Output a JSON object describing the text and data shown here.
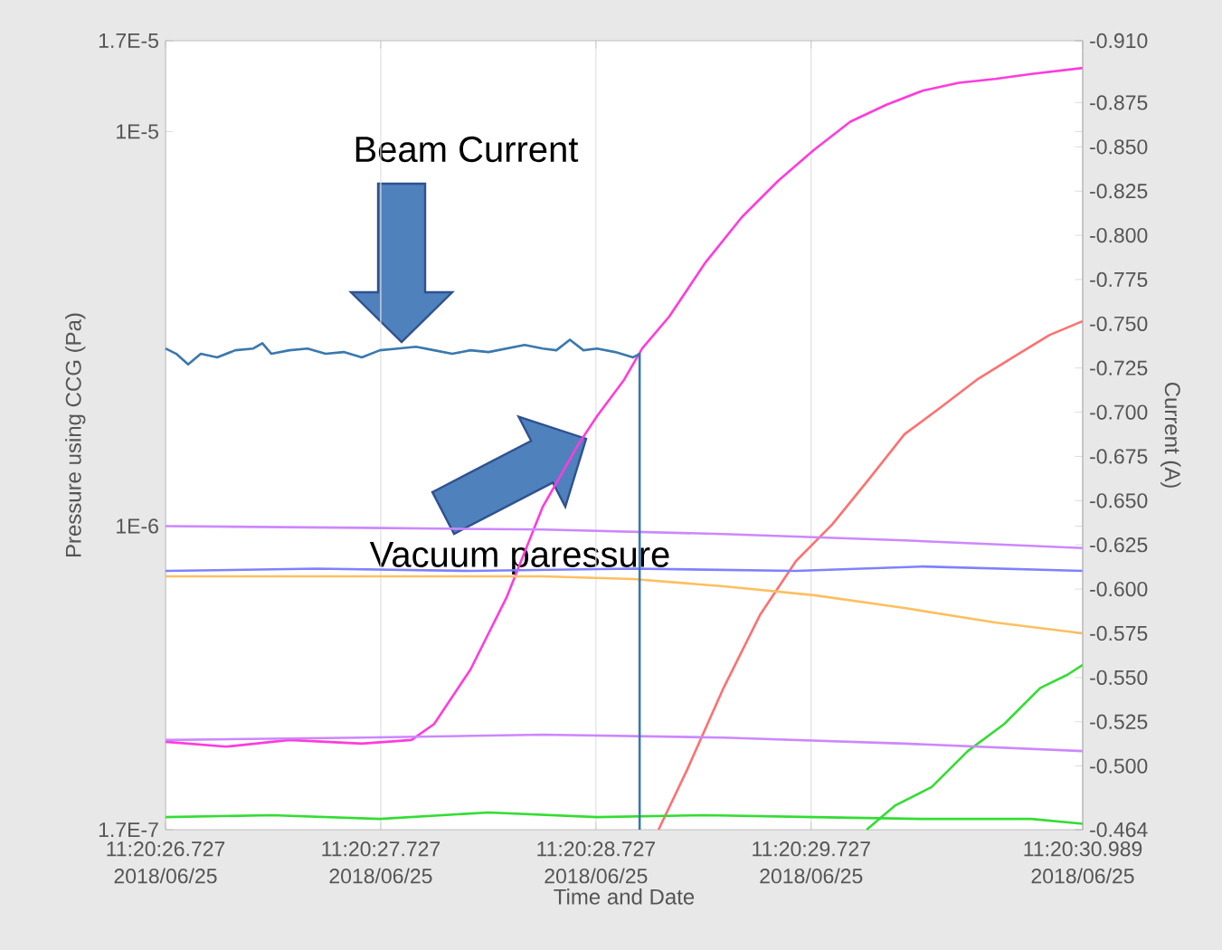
{
  "chart_data": {
    "type": "line",
    "xlabel": "Time and Date",
    "ylabel": "Pressure using CCG (Pa)",
    "y2label": "Current (A)",
    "annotations": [
      "Beam Current",
      "Vacuum paressure"
    ],
    "log": "y",
    "grid": "x",
    "xlim": [
      "2018-06-25T11:20:26.727",
      "2018-06-25T11:20:30.989"
    ],
    "xticks": [
      {
        "value": "2018-06-25T11:20:26.727",
        "label": "11:20:26.727 2018/06/25"
      },
      {
        "value": "2018-06-25T11:20:27.727",
        "label": "11:20:27.727 2018/06/25"
      },
      {
        "value": "2018-06-25T11:20:28.727",
        "label": "11:20:28.727 2018/06/25"
      },
      {
        "value": "2018-06-25T11:20:29.727",
        "label": "11:20:29.727 2018/06/25"
      },
      {
        "value": "2018-06-25T11:20:30.989",
        "label": "11:20:30.989 2018/06/25"
      }
    ],
    "ylim": [
      1.7e-07,
      1.7e-05
    ],
    "yticks": [
      {
        "value": 1.7e-07,
        "label": "1.7E-7"
      },
      {
        "value": 1e-06,
        "label": "1E-6"
      },
      {
        "value": 1e-05,
        "label": "1E-5"
      },
      {
        "value": 1.7e-05,
        "label": "1.7E-5"
      }
    ],
    "y2lim": [
      -0.464,
      -0.91
    ],
    "y2ticks": [
      {
        "value": -0.464,
        "label": "-0.464"
      },
      {
        "value": -0.5,
        "label": "-0.500"
      },
      {
        "value": -0.525,
        "label": "-0.525"
      },
      {
        "value": -0.55,
        "label": "-0.550"
      },
      {
        "value": -0.575,
        "label": "-0.575"
      },
      {
        "value": -0.6,
        "label": "-0.600"
      },
      {
        "value": -0.625,
        "label": "-0.625"
      },
      {
        "value": -0.65,
        "label": "-0.650"
      },
      {
        "value": -0.675,
        "label": "-0.675"
      },
      {
        "value": -0.7,
        "label": "-0.700"
      },
      {
        "value": -0.725,
        "label": "-0.725"
      },
      {
        "value": -0.75,
        "label": "-0.750"
      },
      {
        "value": -0.775,
        "label": "-0.775"
      },
      {
        "value": -0.8,
        "label": "-0.800"
      },
      {
        "value": -0.825,
        "label": "-0.825"
      },
      {
        "value": -0.85,
        "label": "-0.850"
      },
      {
        "value": -0.875,
        "label": "-0.875"
      },
      {
        "value": -0.91,
        "label": "-0.910"
      }
    ],
    "series": [
      {
        "color": "#3a78ae",
        "axis": "y2",
        "x": [
          "2018-06-25T11:20:26.727",
          "2018-06-25T11:20:26.777",
          "2018-06-25T11:20:26.832",
          "2018-06-25T11:20:26.891",
          "2018-06-25T11:20:26.967",
          "2018-06-25T11:20:27.051",
          "2018-06-25T11:20:27.135",
          "2018-06-25T11:20:27.177",
          "2018-06-25T11:20:27.219",
          "2018-06-25T11:20:27.303",
          "2018-06-25T11:20:27.387",
          "2018-06-25T11:20:27.471",
          "2018-06-25T11:20:27.555",
          "2018-06-25T11:20:27.639",
          "2018-06-25T11:20:27.723",
          "2018-06-25T11:20:27.807",
          "2018-06-25T11:20:27.891",
          "2018-06-25T11:20:27.975",
          "2018-06-25T11:20:28.059",
          "2018-06-25T11:20:28.144",
          "2018-06-25T11:20:28.228",
          "2018-06-25T11:20:28.312",
          "2018-06-25T11:20:28.396",
          "2018-06-25T11:20:28.480",
          "2018-06-25T11:20:28.543",
          "2018-06-25T11:20:28.606",
          "2018-06-25T11:20:28.669",
          "2018-06-25T11:20:28.732",
          "2018-06-25T11:20:28.816",
          "2018-06-25T11:20:28.900",
          "2018-06-25T11:20:28.930",
          "2018-06-25T11:20:28.930"
        ],
        "values": [
          -0.736,
          -0.733,
          -0.727,
          -0.733,
          -0.731,
          -0.735,
          -0.736,
          -0.739,
          -0.733,
          -0.735,
          -0.736,
          -0.733,
          -0.734,
          -0.731,
          -0.735,
          -0.736,
          -0.737,
          -0.735,
          -0.733,
          -0.735,
          -0.734,
          -0.736,
          -0.738,
          -0.736,
          -0.735,
          -0.741,
          -0.735,
          -0.736,
          -0.734,
          -0.731,
          -0.733,
          -0.464
        ]
      },
      {
        "color": "#ff3cdc",
        "x": [
          "2018-06-25T11:20:26.727",
          "2018-06-25T11:20:27.009",
          "2018-06-25T11:20:27.303",
          "2018-06-25T11:20:27.639",
          "2018-06-25T11:20:27.870",
          "2018-06-25T11:20:27.975",
          "2018-06-25T11:20:28.144",
          "2018-06-25T11:20:28.312",
          "2018-06-25T11:20:28.480",
          "2018-06-25T11:20:28.648",
          "2018-06-25T11:20:28.732",
          "2018-06-25T11:20:28.858",
          "2018-06-25T11:20:28.942",
          "2018-06-25T11:20:29.068",
          "2018-06-25T11:20:29.236",
          "2018-06-25T11:20:29.405",
          "2018-06-25T11:20:29.573",
          "2018-06-25T11:20:29.741",
          "2018-06-25T11:20:29.909",
          "2018-06-25T11:20:30.077",
          "2018-06-25T11:20:30.245",
          "2018-06-25T11:20:30.413",
          "2018-06-25T11:20:30.581",
          "2018-06-25T11:20:30.750",
          "2018-06-25T11:20:30.989"
        ],
        "values": [
          2.84e-07,
          2.76e-07,
          2.87e-07,
          2.81e-07,
          2.87e-07,
          3.15e-07,
          4.33e-07,
          6.6e-07,
          1.12e-06,
          1.62e-06,
          1.9e-06,
          2.35e-06,
          2.82e-06,
          3.4e-06,
          4.66e-06,
          6.07e-06,
          7.5e-06,
          9e-06,
          1.06e-05,
          1.17e-05,
          1.27e-05,
          1.33e-05,
          1.36e-05,
          1.4e-05,
          1.45e-05
        ]
      },
      {
        "color": "#ff7070",
        "x": [
          "2018-06-25T11:20:29.018",
          "2018-06-25T11:20:29.152",
          "2018-06-25T11:20:29.320",
          "2018-06-25T11:20:29.489",
          "2018-06-25T11:20:29.657",
          "2018-06-25T11:20:29.825",
          "2018-06-25T11:20:29.993",
          "2018-06-25T11:20:30.161",
          "2018-06-25T11:20:30.329",
          "2018-06-25T11:20:30.497",
          "2018-06-25T11:20:30.665",
          "2018-06-25T11:20:30.834",
          "2018-06-25T11:20:30.989"
        ],
        "values": [
          1.7e-07,
          2.42e-07,
          3.89e-07,
          5.95e-07,
          8.16e-07,
          1.01e-06,
          1.31e-06,
          1.71e-06,
          2e-06,
          2.35e-06,
          2.68e-06,
          3.05e-06,
          3.31e-06
        ]
      },
      {
        "color": "#33dd33",
        "x": [
          "2018-06-25T11:20:29.985",
          "2018-06-25T11:20:30.119",
          "2018-06-25T11:20:30.287",
          "2018-06-25T11:20:30.455",
          "2018-06-25T11:20:30.624",
          "2018-06-25T11:20:30.792",
          "2018-06-25T11:20:30.918",
          "2018-06-25T11:20:30.989"
        ],
        "values": [
          1.7e-07,
          1.96e-07,
          2.18e-07,
          2.69e-07,
          3.15e-07,
          3.89e-07,
          4.2e-07,
          4.45e-07
        ]
      },
      {
        "color": "#33dd33",
        "x": [
          "2018-06-25T11:20:26.727",
          "2018-06-25T11:20:27.219",
          "2018-06-25T11:20:27.723",
          "2018-06-25T11:20:28.228",
          "2018-06-25T11:20:28.732",
          "2018-06-25T11:20:29.236",
          "2018-06-25T11:20:29.741",
          "2018-06-25T11:20:30.245",
          "2018-06-25T11:20:30.750",
          "2018-06-25T11:20:30.989"
        ],
        "values": [
          1.83e-07,
          1.85e-07,
          1.81e-07,
          1.88e-07,
          1.83e-07,
          1.85e-07,
          1.83e-07,
          1.81e-07,
          1.81e-07,
          1.76e-07
        ]
      },
      {
        "color": "#cc88ff",
        "x": [
          "2018-06-25T11:20:26.727",
          "2018-06-25T11:20:27.639",
          "2018-06-25T11:20:28.480",
          "2018-06-25T11:20:29.320",
          "2018-06-25T11:20:30.161",
          "2018-06-25T11:20:30.989"
        ],
        "values": [
          1e-06,
          9.9e-07,
          9.8e-07,
          9.55e-07,
          9.2e-07,
          8.8e-07
        ]
      },
      {
        "color": "#8080ff",
        "x": [
          "2018-06-25T11:20:26.727",
          "2018-06-25T11:20:27.429",
          "2018-06-25T11:20:28.144",
          "2018-06-25T11:20:28.900",
          "2018-06-25T11:20:29.657",
          "2018-06-25T11:20:30.245",
          "2018-06-25T11:20:30.989"
        ],
        "values": [
          7.7e-07,
          7.8e-07,
          7.7e-07,
          7.8e-07,
          7.7e-07,
          7.9e-07,
          7.7e-07
        ]
      },
      {
        "color": "#ffbf60",
        "x": [
          "2018-06-25T11:20:26.727",
          "2018-06-25T11:20:28.480",
          "2018-06-25T11:20:28.900",
          "2018-06-25T11:20:29.320",
          "2018-06-25T11:20:29.741",
          "2018-06-25T11:20:30.161",
          "2018-06-25T11:20:30.581",
          "2018-06-25T11:20:30.989"
        ],
        "values": [
          7.46e-07,
          7.46e-07,
          7.34e-07,
          7.04e-07,
          6.68e-07,
          6.2e-07,
          5.7e-07,
          5.35e-07
        ]
      },
      {
        "color": "#cc88ff",
        "x": [
          "2018-06-25T11:20:26.727",
          "2018-06-25T11:20:27.639",
          "2018-06-25T11:20:28.480",
          "2018-06-25T11:20:29.320",
          "2018-06-25T11:20:30.161",
          "2018-06-25T11:20:30.989"
        ],
        "values": [
          2.87e-07,
          2.91e-07,
          2.96e-07,
          2.91e-07,
          2.81e-07,
          2.69e-07
        ]
      }
    ]
  }
}
